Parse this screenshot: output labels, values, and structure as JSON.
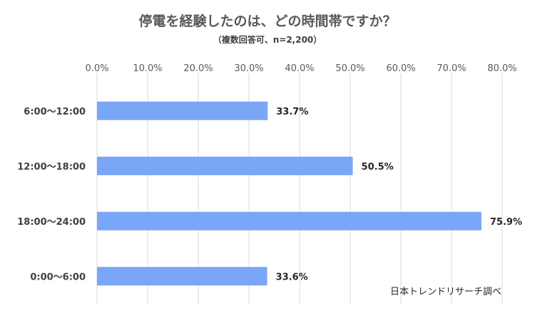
{
  "chart_data": {
    "type": "bar",
    "orientation": "horizontal",
    "title": "停電を経験したのは、どの時間帯ですか？",
    "subtitle": "（複数回答可、n=2,200）",
    "categories": [
      "6:00〜12:00",
      "12:00〜18:00",
      "18:00〜24:00",
      "0:00〜6:00"
    ],
    "values": [
      33.7,
      50.5,
      75.9,
      33.6
    ],
    "data_labels": [
      "33.7%",
      "50.5%",
      "75.9%",
      "33.6%"
    ],
    "x_ticks": [
      "0.0%",
      "10.0%",
      "20.0%",
      "30.0%",
      "40.0%",
      "50.0%",
      "60.0%",
      "70.0%",
      "80.0%"
    ],
    "xlim": [
      0,
      80
    ],
    "x_tick_step": 10,
    "grid": true,
    "axis_position": "top",
    "bar_color": "#7aa6f7",
    "source": "日本トレンドリサーチ調べ"
  }
}
